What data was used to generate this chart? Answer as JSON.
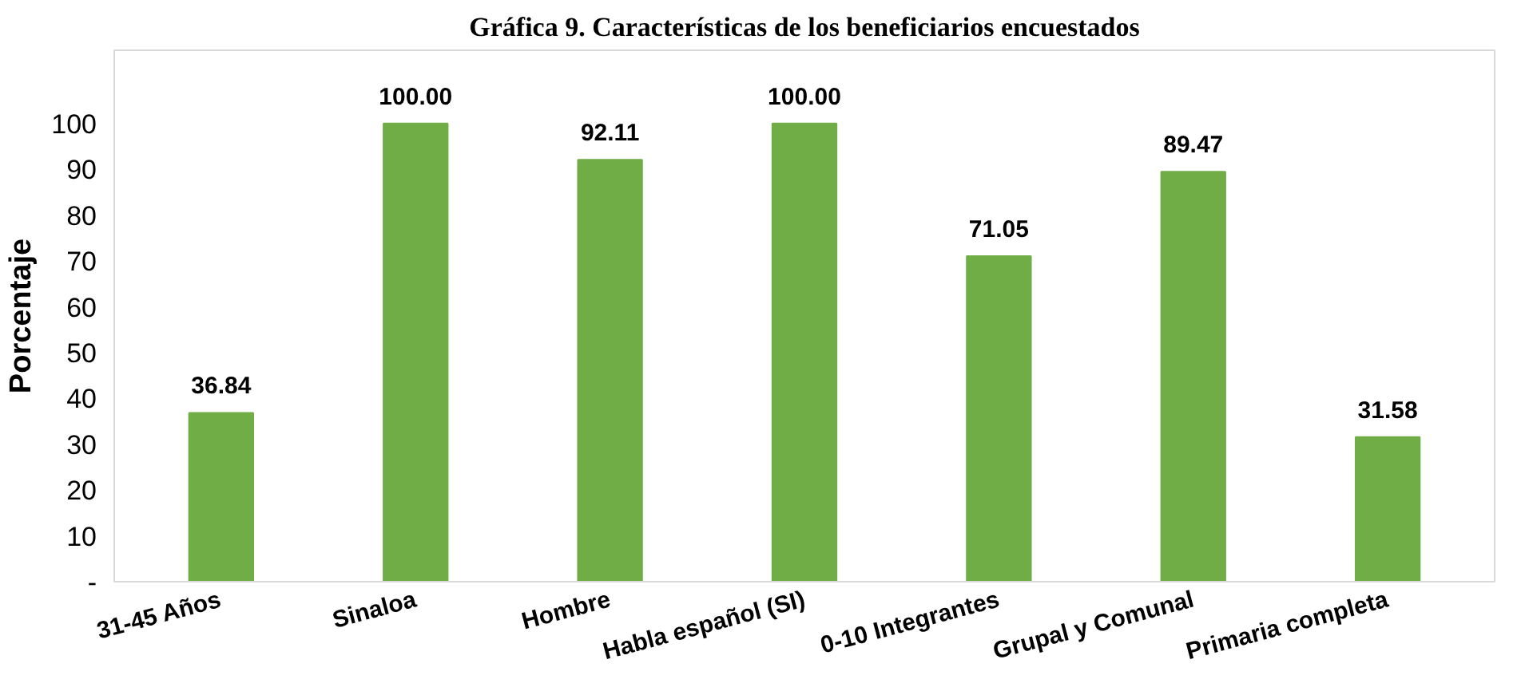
{
  "chart_data": {
    "type": "bar",
    "title": "Gráfica 9. Características de los beneficiarios encuestados",
    "ylabel": "Porcentaje",
    "categories": [
      "31-45 Años",
      "Sinaloa",
      "Hombre",
      "Habla español (SI)",
      "0-10 Integrantes",
      "Grupal y Comunal",
      "Primaria completa"
    ],
    "values": [
      36.84,
      100.0,
      92.11,
      100.0,
      71.05,
      89.47,
      31.58
    ],
    "value_labels": [
      "36.84",
      "100.00",
      "92.11",
      "100.00",
      "71.05",
      "89.47",
      "31.58"
    ],
    "color": "#70ad47",
    "ylim": [
      0,
      116
    ],
    "yticks": [
      {
        "value": 0,
        "label": "-"
      },
      10,
      20,
      30,
      40,
      50,
      60,
      70,
      80,
      90,
      100
    ],
    "grid": false
  }
}
